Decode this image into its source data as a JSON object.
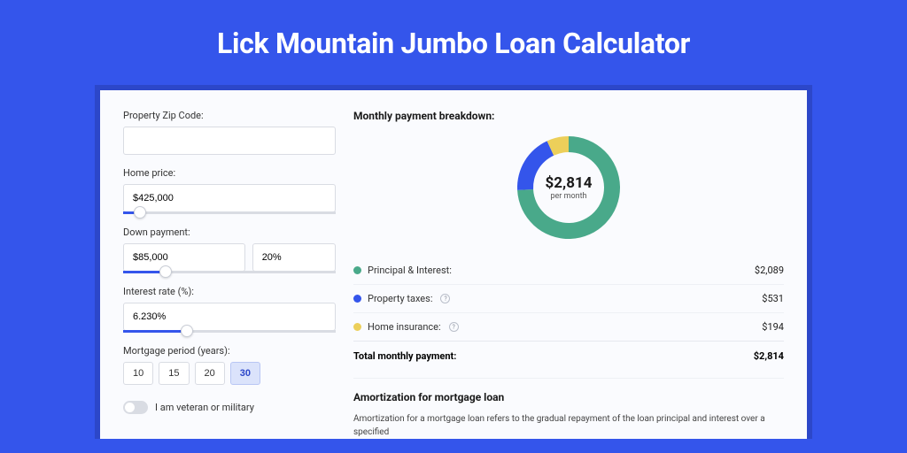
{
  "page": {
    "background_color": "#3455eb",
    "title": "Lick Mountain Jumbo Loan Calculator"
  },
  "form": {
    "zip_label": "Property Zip Code:",
    "zip_value": "",
    "home_price_label": "Home price:",
    "home_price_value": "$425,000",
    "home_price_slider_pct": 8,
    "down_payment_label": "Down payment:",
    "down_payment_value": "$85,000",
    "down_payment_pct_value": "20%",
    "down_payment_slider_pct": 20,
    "rate_label": "Interest rate (%):",
    "rate_value": "6.230%",
    "rate_slider_pct": 30,
    "period_label": "Mortgage period (years):",
    "period_options": [
      "10",
      "15",
      "20",
      "30"
    ],
    "period_selected": "30",
    "veteran_label": "I am veteran or military",
    "veteran_on": false
  },
  "breakdown": {
    "title": "Monthly payment breakdown:",
    "donut": {
      "amount": "$2,814",
      "sub": "per month",
      "slices": [
        {
          "label": "Principal & Interest",
          "color": "#49a98a",
          "value": 2089,
          "pct": 74.2
        },
        {
          "label": "Property taxes",
          "color": "#3455eb",
          "value": 531,
          "pct": 18.9
        },
        {
          "label": "Home insurance",
          "color": "#eccf5a",
          "value": 194,
          "pct": 6.9
        }
      ],
      "ring_width": 18,
      "size": 120,
      "bg": "#ffffff"
    },
    "legend": [
      {
        "dot": "#49a98a",
        "label": "Principal & Interest:",
        "value": "$2,089",
        "info": false
      },
      {
        "dot": "#3455eb",
        "label": "Property taxes:",
        "value": "$531",
        "info": true
      },
      {
        "dot": "#eccf5a",
        "label": "Home insurance:",
        "value": "$194",
        "info": true
      }
    ],
    "total_label": "Total monthly payment:",
    "total_value": "$2,814"
  },
  "amortization": {
    "title": "Amortization for mortgage loan",
    "text": "Amortization for a mortgage loan refers to the gradual repayment of the loan principal and interest over a specified"
  }
}
